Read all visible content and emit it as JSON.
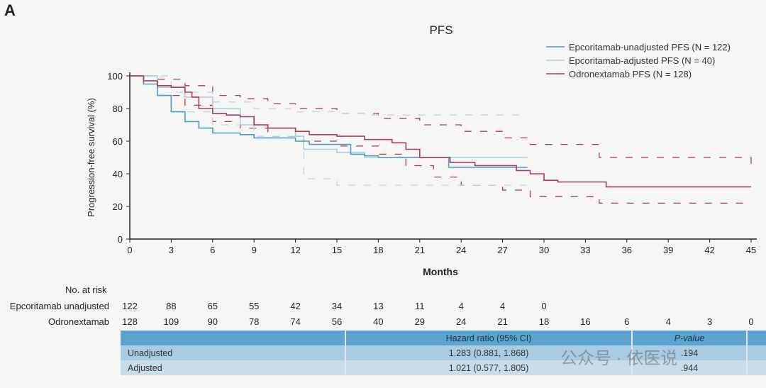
{
  "panel_label": "A",
  "chart_data": {
    "type": "line",
    "title": "PFS",
    "xlabel": "Months",
    "ylabel": "Progression-free survival (%)",
    "xlim": [
      0,
      45
    ],
    "ylim": [
      0,
      100
    ],
    "xticks": [
      0,
      3,
      6,
      9,
      12,
      15,
      18,
      21,
      24,
      27,
      30,
      33,
      36,
      39,
      42,
      45
    ],
    "yticks": [
      0,
      20,
      40,
      60,
      80,
      100
    ],
    "legend_position": "top-right",
    "series": [
      {
        "name": "Epcoritamab-unadjusted PFS (N = 122)",
        "color": "#4a9cc9",
        "style": "step",
        "points": [
          [
            0,
            100
          ],
          [
            1,
            95
          ],
          [
            2,
            88
          ],
          [
            3,
            78
          ],
          [
            4,
            72
          ],
          [
            5,
            68
          ],
          [
            6,
            65
          ],
          [
            8,
            64
          ],
          [
            9,
            62
          ],
          [
            12,
            60
          ],
          [
            13,
            58
          ],
          [
            16,
            52
          ],
          [
            17,
            51
          ],
          [
            18,
            50
          ],
          [
            23,
            50
          ],
          [
            23.1,
            44
          ],
          [
            28.8,
            44
          ]
        ]
      },
      {
        "name": "Epcoritamab-adjusted PFS (N = 40)",
        "color": "#a7cde0",
        "style": "step",
        "points": [
          [
            0,
            100
          ],
          [
            2,
            93
          ],
          [
            4,
            87
          ],
          [
            6,
            80
          ],
          [
            8,
            70
          ],
          [
            10,
            68
          ],
          [
            12,
            63
          ],
          [
            12.6,
            55
          ],
          [
            15,
            53
          ],
          [
            17,
            50
          ],
          [
            28.8,
            50
          ]
        ]
      },
      {
        "name": "Odronextamab PFS (N = 128)",
        "color": "#b23a4e",
        "style": "step",
        "points": [
          [
            0,
            100
          ],
          [
            1,
            97
          ],
          [
            2,
            94
          ],
          [
            3,
            93
          ],
          [
            4,
            90
          ],
          [
            4.5,
            87
          ],
          [
            5,
            80
          ],
          [
            6,
            77
          ],
          [
            7,
            76
          ],
          [
            8,
            75
          ],
          [
            9,
            70
          ],
          [
            10,
            68
          ],
          [
            12,
            66
          ],
          [
            13,
            64
          ],
          [
            15,
            63
          ],
          [
            17,
            61
          ],
          [
            19,
            59
          ],
          [
            20,
            55
          ],
          [
            21,
            50
          ],
          [
            23,
            50
          ],
          [
            23.2,
            47
          ],
          [
            25,
            45
          ],
          [
            28,
            42
          ],
          [
            29,
            40
          ],
          [
            30,
            36
          ],
          [
            31,
            35
          ],
          [
            34.5,
            32
          ],
          [
            45,
            32
          ]
        ]
      }
    ],
    "confidence_bands": [
      {
        "color": "#b23a4e",
        "upper": [
          [
            0,
            100
          ],
          [
            2,
            98
          ],
          [
            4,
            94
          ],
          [
            6,
            88
          ],
          [
            8,
            86
          ],
          [
            10,
            83
          ],
          [
            12,
            80
          ],
          [
            15,
            77
          ],
          [
            18,
            74
          ],
          [
            21,
            70
          ],
          [
            24,
            66
          ],
          [
            27,
            62
          ],
          [
            29,
            58
          ],
          [
            34,
            50
          ],
          [
            45,
            46
          ]
        ],
        "lower": [
          [
            0,
            100
          ],
          [
            2,
            88
          ],
          [
            4,
            82
          ],
          [
            6,
            72
          ],
          [
            8,
            68
          ],
          [
            10,
            63
          ],
          [
            12,
            60
          ],
          [
            15,
            57
          ],
          [
            18,
            52
          ],
          [
            20,
            45
          ],
          [
            22,
            38
          ],
          [
            24,
            33
          ],
          [
            27,
            30
          ],
          [
            29,
            26
          ],
          [
            34,
            22
          ],
          [
            45,
            22
          ]
        ]
      },
      {
        "color": "#b9d6e4",
        "upper": [
          [
            0,
            100
          ],
          [
            3,
            90
          ],
          [
            6,
            84
          ],
          [
            9,
            80
          ],
          [
            12,
            78
          ],
          [
            15,
            77
          ],
          [
            17,
            76
          ],
          [
            28.8,
            76
          ]
        ],
        "lower": [
          [
            0,
            100
          ],
          [
            3,
            78
          ],
          [
            6,
            70
          ],
          [
            9,
            63
          ],
          [
            12,
            60
          ],
          [
            12.6,
            37
          ],
          [
            15,
            33
          ],
          [
            28.8,
            33
          ]
        ]
      }
    ]
  },
  "risk_table": {
    "title": "No. at risk",
    "rows": [
      {
        "label": "Epcoritamab unadjusted",
        "values": [
          "122",
          "88",
          "65",
          "55",
          "42",
          "34",
          "13",
          "11",
          "4",
          "4",
          "0"
        ]
      },
      {
        "label": "Odronextamab",
        "values": [
          "128",
          "109",
          "90",
          "78",
          "74",
          "56",
          "40",
          "29",
          "24",
          "21",
          "18",
          "16",
          "6",
          "4",
          "3",
          "0"
        ]
      }
    ]
  },
  "hr_table": {
    "headers": [
      "",
      "Hazard ratio (95% CI)",
      "P-value"
    ],
    "rows": [
      [
        "Unadjusted",
        "1.283 (0.881, 1.868)",
        ".194"
      ],
      [
        "Adjusted",
        "1.021 (0.577, 1.805)",
        ".944"
      ]
    ]
  },
  "watermark": "公众号 · 依医说"
}
